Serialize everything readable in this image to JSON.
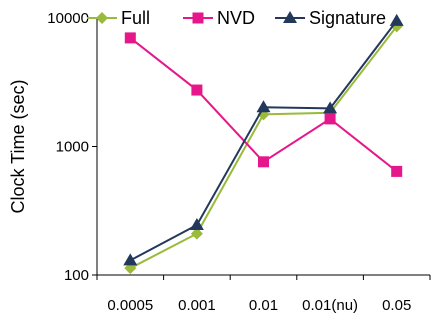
{
  "chart_data": {
    "type": "line",
    "x": [
      "0.0005",
      "0.001",
      "0.01",
      "0.01(nu)",
      "0.05"
    ],
    "ylabel": "Clock Time (sec)",
    "xlabel": "",
    "yscale": "log",
    "ylim": [
      100,
      10000
    ],
    "yticks": [
      {
        "value": 100,
        "label": "100"
      },
      {
        "value": 1000,
        "label": "1000"
      },
      {
        "value": 10000,
        "label": "10000"
      }
    ],
    "legend": "top",
    "grid": false,
    "series": [
      {
        "name": "Full",
        "color": "#9aba3b",
        "marker": "diamond",
        "values": [
          113,
          210,
          1780,
          1830,
          8600
        ]
      },
      {
        "name": "NVD",
        "color": "#e5178b",
        "marker": "square",
        "values": [
          7000,
          2750,
          760,
          1640,
          640
        ]
      },
      {
        "name": "Signature",
        "color": "#23395b",
        "marker": "triangle",
        "values": [
          130,
          245,
          2020,
          1980,
          9500
        ]
      }
    ]
  }
}
